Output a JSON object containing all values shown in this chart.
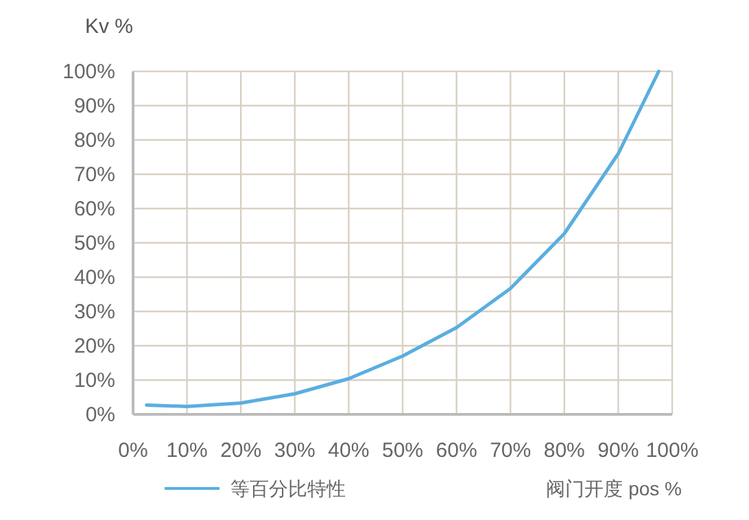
{
  "chart_data": {
    "type": "line",
    "ylabel": "Kv %",
    "xlabel": "阀门开度 pos %",
    "x": [
      2.5,
      10,
      20,
      30,
      40,
      50,
      60,
      70,
      80,
      90,
      97.5
    ],
    "series": [
      {
        "name": "等百分比特性",
        "color": "#5aaee0",
        "values": [
          2.7,
          2.3,
          3.3,
          6,
          10.4,
          17,
          25.3,
          36.7,
          52.7,
          76,
          100
        ]
      }
    ],
    "xlim": [
      0,
      100
    ],
    "ylim": [
      0,
      100
    ],
    "xticks": [
      {
        "value": 0,
        "label": "0%"
      },
      {
        "value": 10,
        "label": "10%"
      },
      {
        "value": 20,
        "label": "20%"
      },
      {
        "value": 30,
        "label": "30%"
      },
      {
        "value": 40,
        "label": "40%"
      },
      {
        "value": 50,
        "label": "50%"
      },
      {
        "value": 60,
        "label": "60%"
      },
      {
        "value": 70,
        "label": "70%"
      },
      {
        "value": 80,
        "label": "80%"
      },
      {
        "value": 90,
        "label": "90%"
      },
      {
        "value": 100,
        "label": "100%"
      }
    ],
    "yticks": [
      {
        "value": 0,
        "label": "0%"
      },
      {
        "value": 10,
        "label": "10%"
      },
      {
        "value": 20,
        "label": "20%"
      },
      {
        "value": 30,
        "label": "30%"
      },
      {
        "value": 40,
        "label": "40%"
      },
      {
        "value": 50,
        "label": "50%"
      },
      {
        "value": 60,
        "label": "60%"
      },
      {
        "value": 70,
        "label": "70%"
      },
      {
        "value": 80,
        "label": "80%"
      },
      {
        "value": 90,
        "label": "90%"
      },
      {
        "value": 100,
        "label": "100%"
      }
    ],
    "grid": true,
    "legend": "bottom left",
    "marker": "none",
    "line_style": "solid"
  }
}
